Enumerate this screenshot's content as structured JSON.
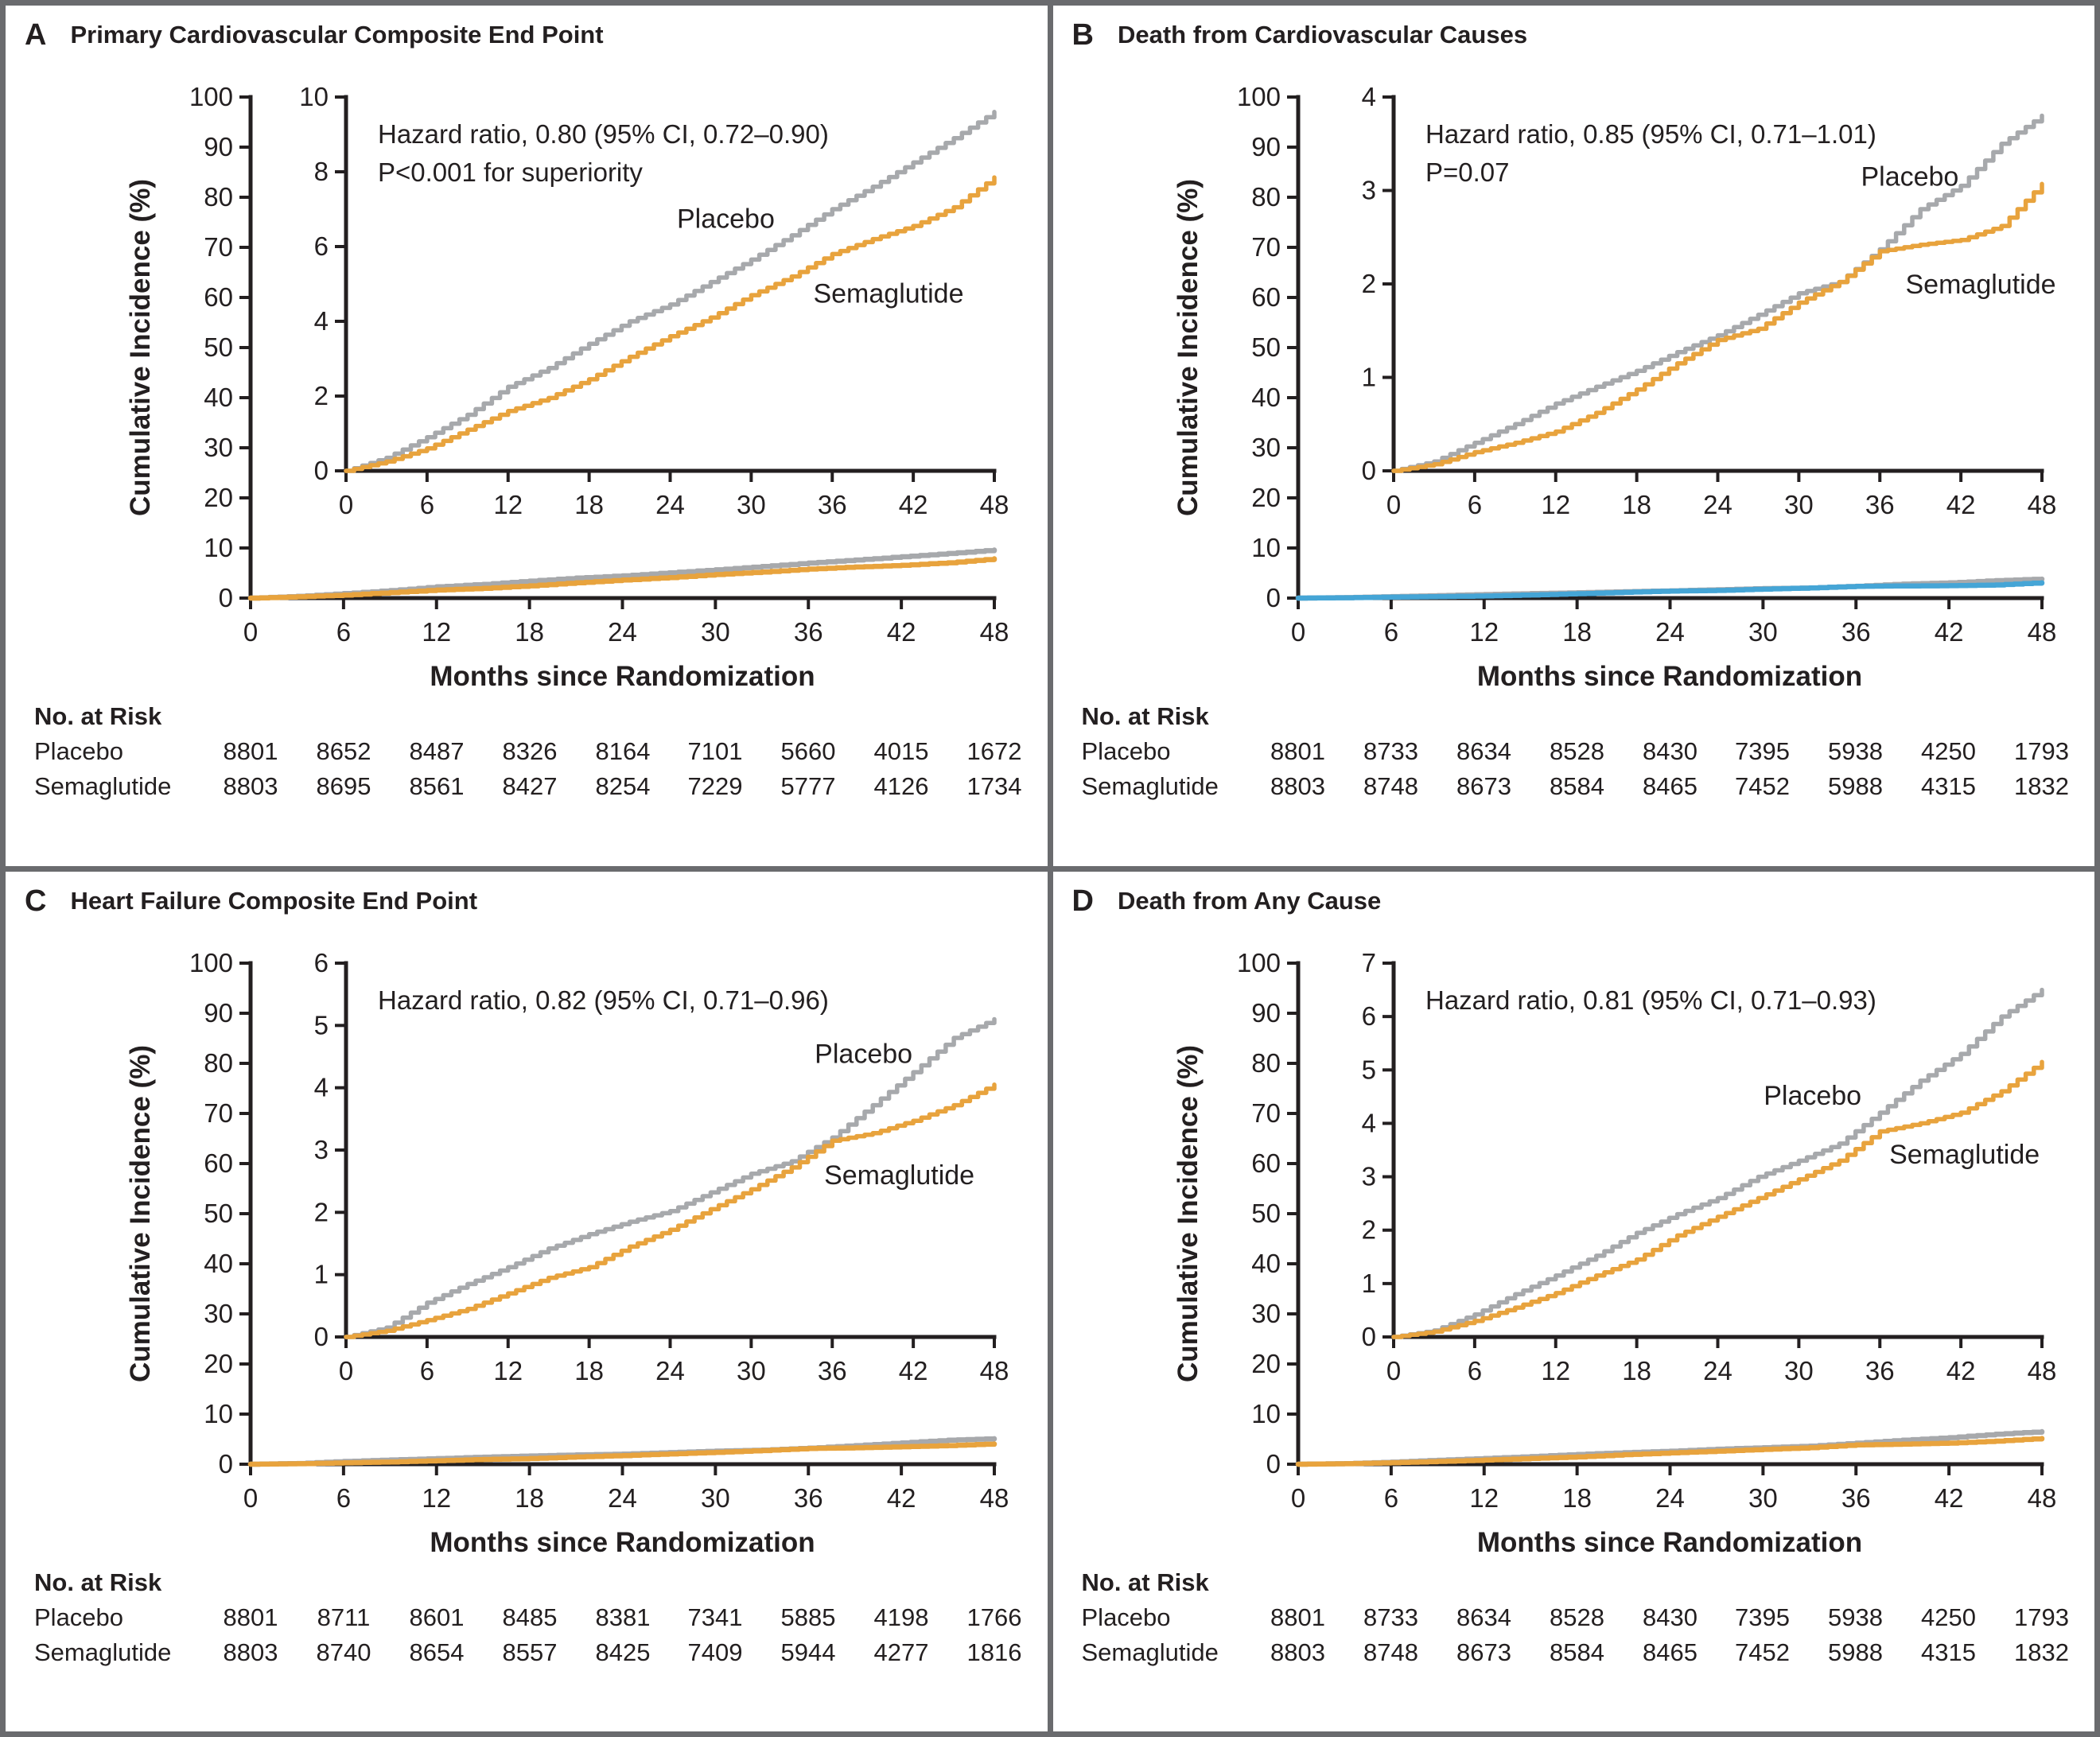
{
  "risk_heading": "No. at Risk",
  "colors": {
    "placebo": "#a7a9ac",
    "semaglutide": "#e8a33d",
    "semaglutide_mini_blue": "#45a5d6",
    "axis_text": "#231f20",
    "divider": "#6a6b6e"
  },
  "chart_data": [
    {
      "type": "line",
      "panel": "A",
      "title": "Primary Cardiovascular Composite End Point",
      "xlabel": "Months since Randomization",
      "ylabel": "Cumulative Incidence (%)",
      "outer_ylim": [
        0,
        100
      ],
      "outer_ytick_step": 10,
      "inset_ylim": [
        0,
        10
      ],
      "inset_ytick_step": 2,
      "xlim": [
        0,
        48
      ],
      "xtick_step": 6,
      "annotation": [
        "Hazard ratio, 0.80 (95% CI, 0.72–0.90)",
        "P<0.001 for superiority"
      ],
      "x": [
        0,
        3,
        6,
        9,
        12,
        15,
        18,
        21,
        24,
        27,
        30,
        33,
        36,
        39,
        42,
        45,
        48
      ],
      "series": [
        {
          "name": "Placebo",
          "color": "#a7a9ac",
          "values": [
            0,
            0.35,
            0.9,
            1.5,
            2.25,
            2.75,
            3.4,
            4.0,
            4.45,
            5.05,
            5.65,
            6.3,
            7.0,
            7.6,
            8.25,
            8.9,
            9.6
          ],
          "label_xy": [
            24.5,
            6.5
          ]
        },
        {
          "name": "Semaglutide",
          "color": "#e8a33d",
          "values": [
            0,
            0.25,
            0.6,
            1.1,
            1.6,
            1.95,
            2.45,
            3.05,
            3.6,
            4.1,
            4.7,
            5.2,
            5.8,
            6.2,
            6.55,
            7.05,
            7.85
          ],
          "label_xy": [
            34.6,
            4.5
          ]
        }
      ],
      "mini_colors": [
        "#a7a9ac",
        "#e8a33d"
      ],
      "no_at_risk": {
        "months": [
          0,
          6,
          12,
          18,
          24,
          30,
          36,
          42,
          48
        ],
        "rows": [
          {
            "name": "Placebo",
            "values": [
              8801,
              8652,
              8487,
              8326,
              8164,
              7101,
              5660,
              4015,
              1672
            ]
          },
          {
            "name": "Semaglutide",
            "values": [
              8803,
              8695,
              8561,
              8427,
              8254,
              7229,
              5777,
              4126,
              1734
            ]
          }
        ]
      }
    },
    {
      "type": "line",
      "panel": "B",
      "title": "Death from Cardiovascular Causes",
      "xlabel": "Months since Randomization",
      "ylabel": "Cumulative Incidence (%)",
      "outer_ylim": [
        0,
        100
      ],
      "outer_ytick_step": 10,
      "inset_ylim": [
        0,
        4
      ],
      "inset_ytick_step": 1,
      "xlim": [
        0,
        48
      ],
      "xtick_step": 6,
      "annotation": [
        "Hazard ratio, 0.85 (95% CI, 0.71–1.01)",
        "P=0.07"
      ],
      "x": [
        0,
        3,
        6,
        9,
        12,
        15,
        18,
        21,
        24,
        27,
        30,
        33,
        36,
        39,
        42,
        45,
        48
      ],
      "series": [
        {
          "name": "Placebo",
          "color": "#a7a9ac",
          "values": [
            0,
            0.1,
            0.3,
            0.5,
            0.72,
            0.9,
            1.07,
            1.27,
            1.45,
            1.67,
            1.9,
            2.02,
            2.37,
            2.8,
            3.05,
            3.5,
            3.8
          ],
          "label_xy": [
            34.6,
            3.05
          ]
        },
        {
          "name": "Semaglutide",
          "color": "#e8a33d",
          "values": [
            0,
            0.07,
            0.2,
            0.3,
            0.42,
            0.62,
            0.87,
            1.15,
            1.4,
            1.52,
            1.8,
            2.02,
            2.35,
            2.42,
            2.47,
            2.62,
            3.07
          ],
          "label_xy": [
            37.9,
            1.9
          ]
        }
      ],
      "mini_colors": [
        "#a7a9ac",
        "#45a5d6"
      ],
      "no_at_risk": {
        "months": [
          0,
          6,
          12,
          18,
          24,
          30,
          36,
          42,
          48
        ],
        "rows": [
          {
            "name": "Placebo",
            "values": [
              8801,
              8733,
              8634,
              8528,
              8430,
              7395,
              5938,
              4250,
              1793
            ]
          },
          {
            "name": "Semaglutide",
            "values": [
              8803,
              8748,
              8673,
              8584,
              8465,
              7452,
              5988,
              4315,
              1832
            ]
          }
        ]
      }
    },
    {
      "type": "line",
      "panel": "C",
      "title": "Heart Failure Composite End Point",
      "xlabel": "Months since Randomization",
      "ylabel": "Cumulative Incidence (%)",
      "outer_ylim": [
        0,
        100
      ],
      "outer_ytick_step": 10,
      "inset_ylim": [
        0,
        6
      ],
      "inset_ytick_step": 1,
      "xlim": [
        0,
        48
      ],
      "xtick_step": 6,
      "annotation": [
        "Hazard ratio, 0.82 (95% CI, 0.71–0.96)"
      ],
      "x": [
        0,
        3,
        6,
        9,
        12,
        15,
        18,
        21,
        24,
        27,
        30,
        33,
        36,
        39,
        42,
        45,
        48
      ],
      "series": [
        {
          "name": "Placebo",
          "color": "#a7a9ac",
          "values": [
            0,
            0.15,
            0.55,
            0.85,
            1.12,
            1.42,
            1.65,
            1.85,
            2.02,
            2.32,
            2.62,
            2.82,
            3.2,
            3.72,
            4.25,
            4.8,
            5.1
          ],
          "label_xy": [
            34.7,
            4.4
          ]
        },
        {
          "name": "Semaglutide",
          "color": "#e8a33d",
          "values": [
            0,
            0.1,
            0.27,
            0.45,
            0.7,
            0.95,
            1.12,
            1.45,
            1.72,
            2.05,
            2.37,
            2.72,
            3.15,
            3.27,
            3.47,
            3.72,
            4.05
          ],
          "label_xy": [
            35.4,
            2.45
          ]
        }
      ],
      "mini_colors": [
        "#a7a9ac",
        "#e8a33d"
      ],
      "no_at_risk": {
        "months": [
          0,
          6,
          12,
          18,
          24,
          30,
          36,
          42,
          48
        ],
        "rows": [
          {
            "name": "Placebo",
            "values": [
              8801,
              8711,
              8601,
              8485,
              8381,
              7341,
              5885,
              4198,
              1766
            ]
          },
          {
            "name": "Semaglutide",
            "values": [
              8803,
              8740,
              8654,
              8557,
              8425,
              7409,
              5944,
              4277,
              1816
            ]
          }
        ]
      }
    },
    {
      "type": "line",
      "panel": "D",
      "title": "Death from Any Cause",
      "xlabel": "Months since Randomization",
      "ylabel": "Cumulative Incidence (%)",
      "outer_ylim": [
        0,
        100
      ],
      "outer_ytick_step": 10,
      "inset_ylim": [
        0,
        7
      ],
      "inset_ytick_step": 1,
      "xlim": [
        0,
        48
      ],
      "xtick_step": 6,
      "annotation": [
        "Hazard ratio, 0.81 (95% CI, 0.71–0.93)"
      ],
      "x": [
        0,
        3,
        6,
        9,
        12,
        15,
        18,
        21,
        24,
        27,
        30,
        33,
        36,
        39,
        42,
        45,
        48
      ],
      "series": [
        {
          "name": "Placebo",
          "color": "#a7a9ac",
          "values": [
            0,
            0.12,
            0.42,
            0.8,
            1.15,
            1.52,
            1.95,
            2.3,
            2.6,
            3.0,
            3.3,
            3.62,
            4.2,
            4.8,
            5.3,
            6.0,
            6.5
          ],
          "label_xy": [
            27.4,
            4.35
          ]
        },
        {
          "name": "Semaglutide",
          "color": "#e8a33d",
          "values": [
            0,
            0.1,
            0.3,
            0.55,
            0.82,
            1.15,
            1.45,
            1.9,
            2.25,
            2.6,
            2.95,
            3.3,
            3.85,
            4.0,
            4.2,
            4.6,
            5.15
          ],
          "label_xy": [
            36.7,
            3.25
          ]
        }
      ],
      "mini_colors": [
        "#a7a9ac",
        "#e8a33d"
      ],
      "no_at_risk": {
        "months": [
          0,
          6,
          12,
          18,
          24,
          30,
          36,
          42,
          48
        ],
        "rows": [
          {
            "name": "Placebo",
            "values": [
              8801,
              8733,
              8634,
              8528,
              8430,
              7395,
              5938,
              4250,
              1793
            ]
          },
          {
            "name": "Semaglutide",
            "values": [
              8803,
              8748,
              8673,
              8584,
              8465,
              7452,
              5988,
              4315,
              1832
            ]
          }
        ]
      }
    }
  ]
}
